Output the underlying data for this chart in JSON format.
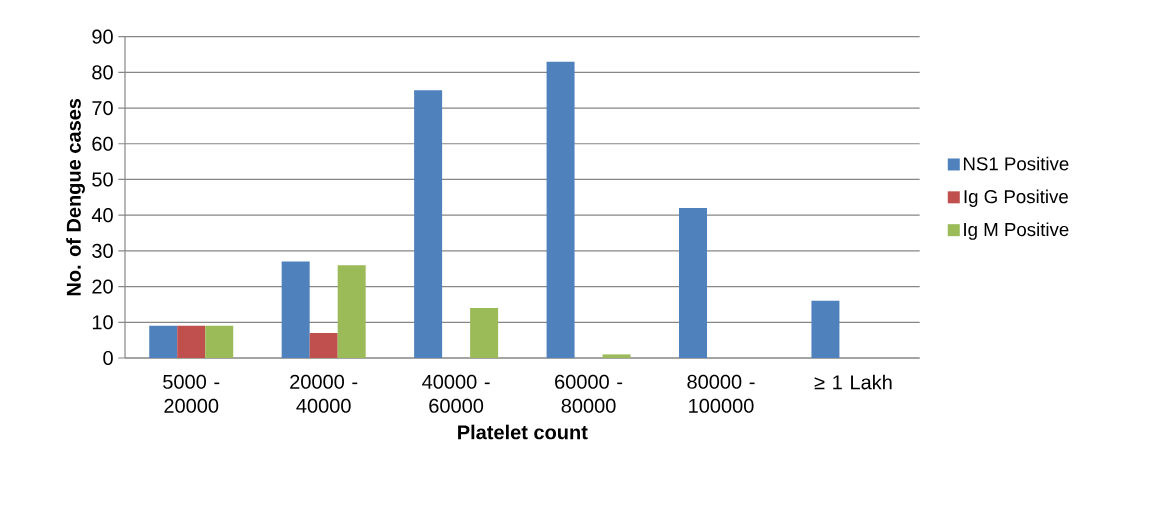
{
  "chart_data": {
    "type": "bar",
    "xlabel": "Platelet count",
    "ylabel": "No. of Dengue cases",
    "categories": [
      "5000 - 20000",
      "20000 - 40000",
      "40000 - 60000",
      "60000 - 80000",
      "80000 - 100000",
      "≥ 1 Lakh"
    ],
    "series": [
      {
        "name": "NS1 Positive",
        "color": "#4f81bd",
        "values": [
          9,
          27,
          75,
          83,
          42,
          16
        ]
      },
      {
        "name": "Ig G Positive",
        "color": "#c0504d",
        "values": [
          9,
          7,
          0,
          0,
          0,
          0
        ]
      },
      {
        "name": "Ig M Positive",
        "color": "#9bbb59",
        "values": [
          9,
          26,
          14,
          1,
          0,
          0
        ]
      }
    ],
    "ylim": [
      0,
      90
    ],
    "yticks": [
      0,
      10,
      20,
      30,
      40,
      50,
      60,
      70,
      80,
      90
    ],
    "grid": "y",
    "legend": "right"
  }
}
